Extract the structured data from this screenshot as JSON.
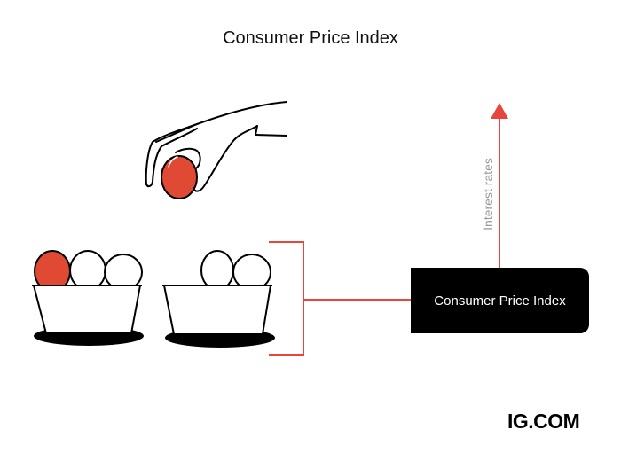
{
  "title": "Consumer Price Index",
  "box_label": "Consumer Price Index",
  "arrow_label": "Interest rates",
  "logo": "IG.COM",
  "colors": {
    "accent": "#e8453c",
    "egg_red": "#e04a35",
    "box": "#000000",
    "label_gray": "#9a9a9a"
  },
  "icons": [
    "hand-holding-egg",
    "egg-basket",
    "egg-basket",
    "arrow-up"
  ]
}
